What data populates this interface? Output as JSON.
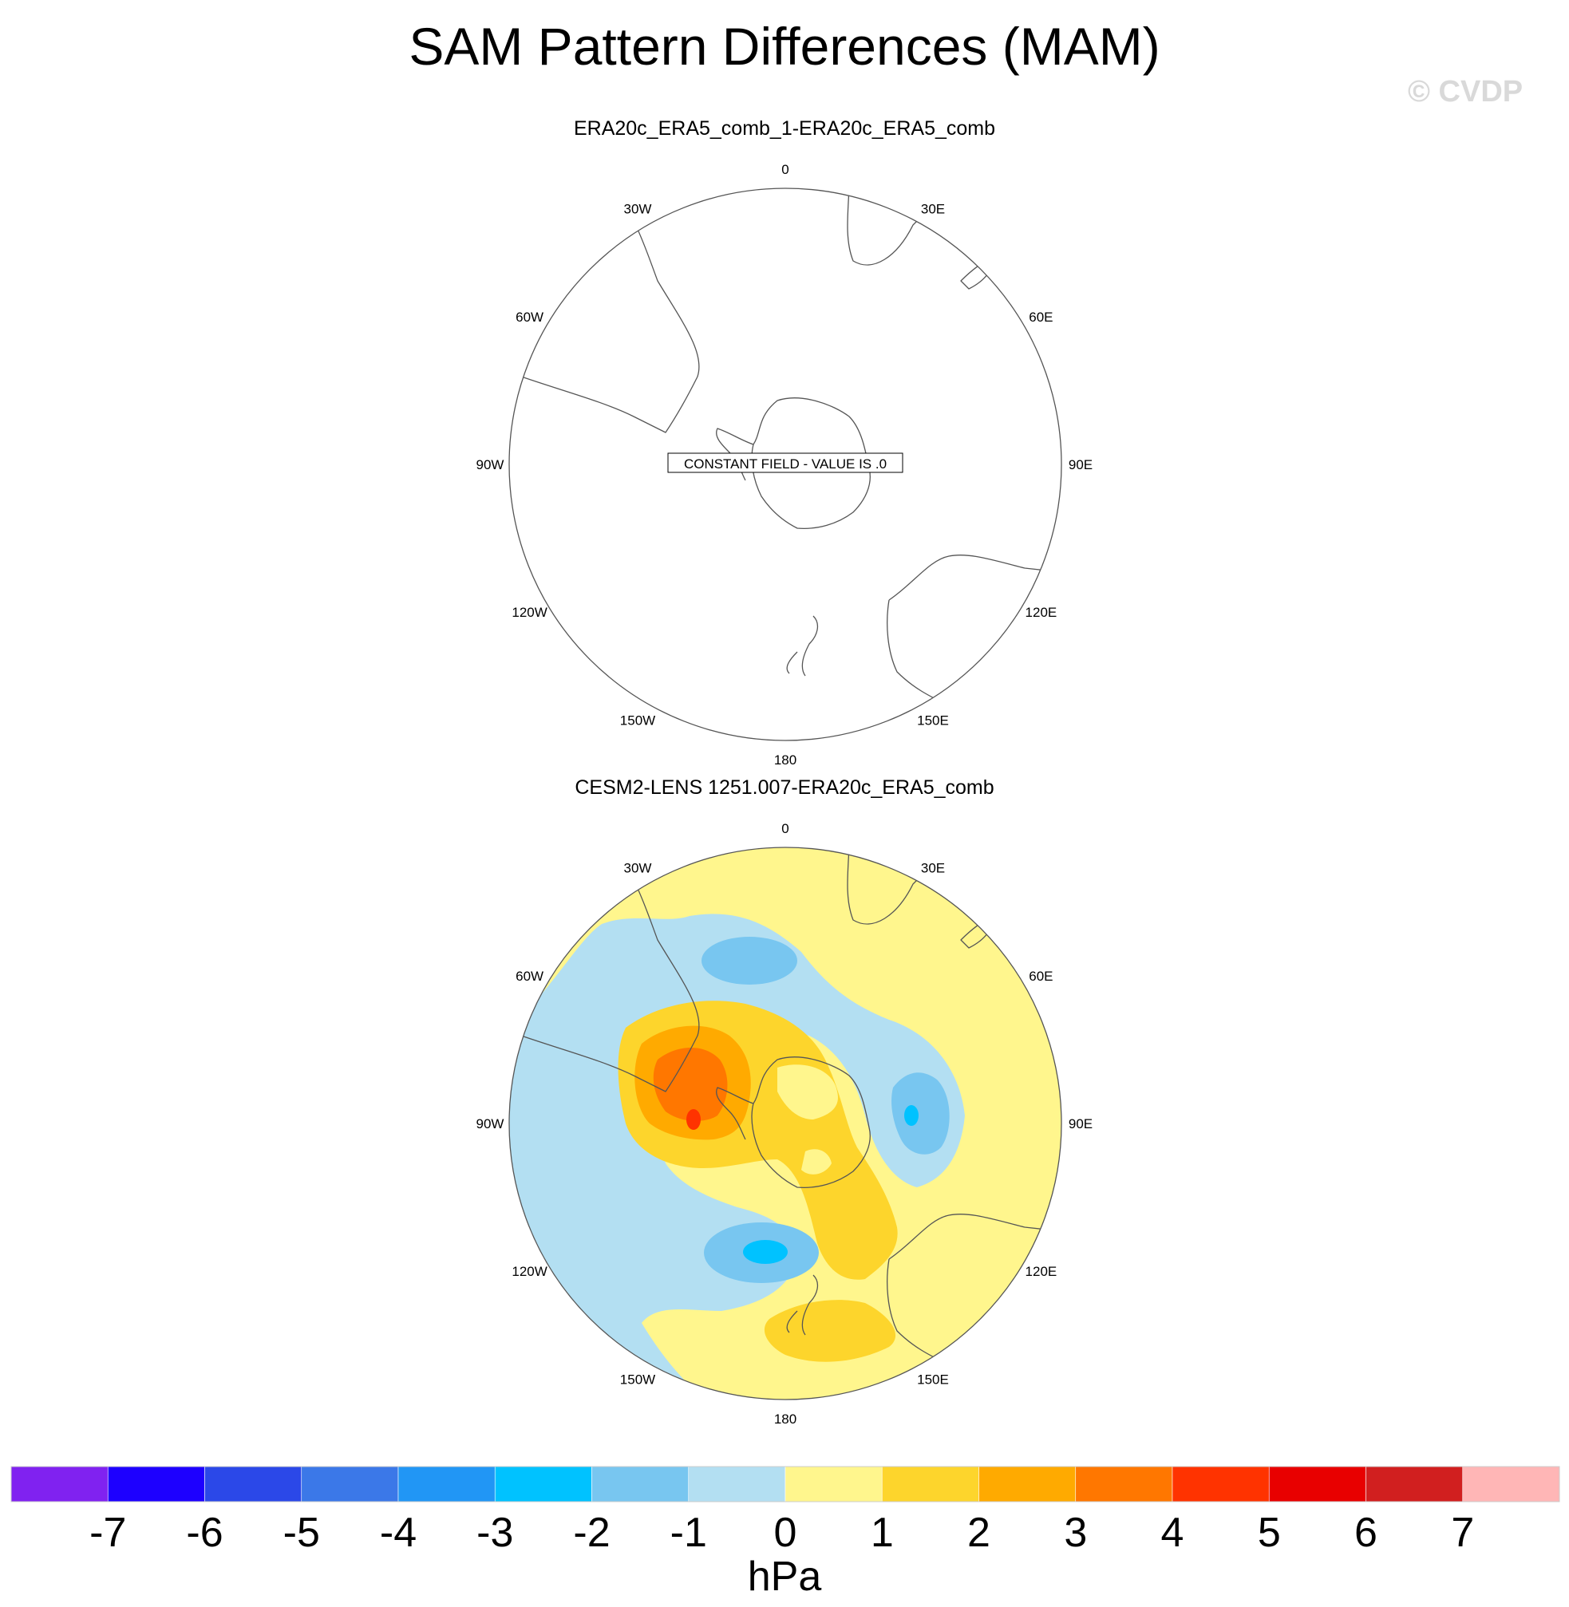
{
  "title": "SAM Pattern Differences (MAM)",
  "watermark": "© CVDP",
  "units": "hPa",
  "longitude_labels": [
    "0",
    "30E",
    "60E",
    "90E",
    "120E",
    "150E",
    "180",
    "150W",
    "120W",
    "90W",
    "60W",
    "30W"
  ],
  "colors": {
    "coast": "#555555",
    "levels": [
      "#8022f0",
      "#1d00ff",
      "#2b48e8",
      "#3b78e8",
      "#2196f5",
      "#00c2ff",
      "#78c6f0",
      "#b3dff2",
      "#fff68d",
      "#fdd52c",
      "#ffaa00",
      "#ff7700",
      "#ff3300",
      "#e80000",
      "#d11f1f",
      "#ffb6b6"
    ]
  },
  "chart_data": [
    {
      "type": "heatmap",
      "projection": "south polar stereographic",
      "title": "ERA20c_ERA5_comb_1-ERA20c_ERA5_comb",
      "annotation": "CONSTANT FIELD - VALUE IS .0",
      "constant_value": 0.0
    },
    {
      "type": "heatmap",
      "projection": "south polar stereographic",
      "title": "CESM2-LENS 1251.007-ERA20c_ERA5_comb",
      "features": [
        {
          "name": "positive anomaly (west of Antarctic Peninsula)",
          "lon": -85,
          "lat": -65,
          "peak_hpa": 4.5
        },
        {
          "name": "positive ridge (Ross Sea towards New Zealand)",
          "lon": 155,
          "lat": -60,
          "peak_hpa": 2
        },
        {
          "name": "positive anomaly (south of New Zealand)",
          "lon": 170,
          "lat": -45,
          "peak_hpa": 2
        },
        {
          "name": "negative anomaly (South Atlantic)",
          "lon": -15,
          "lat": -45,
          "peak_hpa": -2
        },
        {
          "name": "negative anomaly (Indian Ocean sector)",
          "lon": 80,
          "lat": -50,
          "peak_hpa": -3
        },
        {
          "name": "negative anomaly (South Pacific)",
          "lon": -145,
          "lat": -55,
          "peak_hpa": -3
        }
      ]
    }
  ],
  "colorbar": {
    "ticks": [
      "-7",
      "-6",
      "-5",
      "-4",
      "-3",
      "-2",
      "-1",
      "0",
      "1",
      "2",
      "3",
      "4",
      "5",
      "6",
      "7"
    ],
    "min": -8,
    "max": 8,
    "step": 1
  }
}
